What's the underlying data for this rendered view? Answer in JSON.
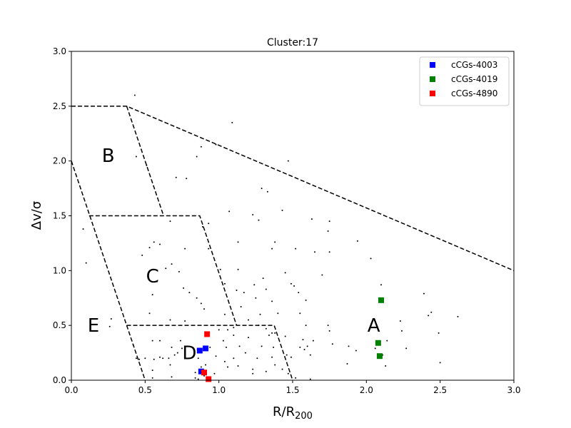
{
  "chart_data": {
    "type": "scatter",
    "title": "Cluster:17",
    "xlabel_main": "R/R",
    "xlabel_sub": "200",
    "ylabel": "Δv/σ",
    "xlim": [
      0,
      3
    ],
    "ylim": [
      0,
      3
    ],
    "x_ticks": [
      "0.0",
      "0.5",
      "1.0",
      "1.5",
      "2.0",
      "2.5",
      "3.0"
    ],
    "y_ticks": [
      "0.0",
      "0.5",
      "1.0",
      "1.5",
      "2.0",
      "2.5",
      "3.0"
    ],
    "grid": false,
    "legend_position": "top-right",
    "regions": [
      {
        "label": "A",
        "x": 2.05,
        "y": 0.5
      },
      {
        "label": "B",
        "x": 0.25,
        "y": 2.05
      },
      {
        "label": "C",
        "x": 0.55,
        "y": 0.95
      },
      {
        "label": "D",
        "x": 0.8,
        "y": 0.25
      },
      {
        "label": "E",
        "x": 0.15,
        "y": 0.5
      }
    ],
    "boundary_lines": [
      [
        [
          0,
          2.5
        ],
        [
          0.375,
          2.5
        ],
        [
          3.0,
          1.0
        ]
      ],
      [
        [
          0.375,
          2.5
        ],
        [
          0.625,
          1.5
        ]
      ],
      [
        [
          0.12,
          1.5
        ],
        [
          0.87,
          1.5
        ],
        [
          1.12,
          0.5
        ]
      ],
      [
        [
          0,
          2.0
        ],
        [
          0.5,
          0.0
        ]
      ],
      [
        [
          0.375,
          0.5
        ],
        [
          1.375,
          0.5
        ],
        [
          1.5,
          0.0
        ]
      ]
    ],
    "series": [
      {
        "name": "cCGs-4003",
        "color": "#0000ff",
        "points": [
          [
            0.87,
            0.27
          ],
          [
            0.91,
            0.29
          ],
          [
            0.88,
            0.08
          ]
        ]
      },
      {
        "name": "cCGs-4019",
        "color": "#008000",
        "points": [
          [
            2.1,
            0.73
          ],
          [
            2.08,
            0.34
          ],
          [
            2.09,
            0.22
          ]
        ]
      },
      {
        "name": "cCGs-4890",
        "color": "#ff0000",
        "points": [
          [
            0.92,
            0.42
          ],
          [
            0.9,
            0.07
          ],
          [
            0.93,
            0.01
          ]
        ]
      }
    ],
    "background_points": [
      [
        0.43,
        2.6
      ],
      [
        1.09,
        2.35
      ],
      [
        0.44,
        2.04
      ],
      [
        0.51,
        1.96
      ],
      [
        0.85,
        2.04
      ],
      [
        0.88,
        2.13
      ],
      [
        0.98,
        2.15
      ],
      [
        1.47,
        2.0
      ],
      [
        0.71,
        1.85
      ],
      [
        0.78,
        1.84
      ],
      [
        1.29,
        1.75
      ],
      [
        1.33,
        1.72
      ],
      [
        1.43,
        1.55
      ],
      [
        1.07,
        1.54
      ],
      [
        1.23,
        1.51
      ],
      [
        1.27,
        1.46
      ],
      [
        1.63,
        1.47
      ],
      [
        1.75,
        1.45
      ],
      [
        0.67,
        1.45
      ],
      [
        0.89,
        1.4
      ],
      [
        0.93,
        1.43
      ],
      [
        0.08,
        1.38
      ],
      [
        1.74,
        1.36
      ],
      [
        1.13,
        1.26
      ],
      [
        1.38,
        1.26
      ],
      [
        0.48,
        1.14
      ],
      [
        0.53,
        1.21
      ],
      [
        0.56,
        1.26
      ],
      [
        0.6,
        1.24
      ],
      [
        0.77,
        1.2
      ],
      [
        0.93,
        1.2
      ],
      [
        1.36,
        1.2
      ],
      [
        1.52,
        1.2
      ],
      [
        1.65,
        1.17
      ],
      [
        1.75,
        1.17
      ],
      [
        1.94,
        1.27
      ],
      [
        2.03,
        1.11
      ],
      [
        0.1,
        1.07
      ],
      [
        0.64,
        1.02
      ],
      [
        0.68,
        1.06
      ],
      [
        0.73,
        0.99
      ],
      [
        1.01,
        1.01
      ],
      [
        1.13,
        1.01
      ],
      [
        1.3,
        0.93
      ],
      [
        1.45,
        0.98
      ],
      [
        1.7,
        0.96
      ],
      [
        0.58,
        0.9
      ],
      [
        0.55,
        0.78
      ],
      [
        0.76,
        0.84
      ],
      [
        0.8,
        0.8
      ],
      [
        1.04,
        0.88
      ],
      [
        1.12,
        0.82
      ],
      [
        1.24,
        0.87
      ],
      [
        1.32,
        0.83
      ],
      [
        1.49,
        0.88
      ],
      [
        1.51,
        0.86
      ],
      [
        2.1,
        0.87
      ],
      [
        0.85,
        0.75
      ],
      [
        0.88,
        0.7
      ],
      [
        1.17,
        0.8
      ],
      [
        1.25,
        0.75
      ],
      [
        1.36,
        0.72
      ],
      [
        1.54,
        0.8
      ],
      [
        1.59,
        0.73
      ],
      [
        2.39,
        0.79
      ],
      [
        0.9,
        0.65
      ],
      [
        1.04,
        0.6
      ],
      [
        1.15,
        0.67
      ],
      [
        1.2,
        0.55
      ],
      [
        1.28,
        0.6
      ],
      [
        1.4,
        0.61
      ],
      [
        1.55,
        0.61
      ],
      [
        2.44,
        0.62
      ],
      [
        2.42,
        0.59
      ],
      [
        2.62,
        0.58
      ],
      [
        0.53,
        0.61
      ],
      [
        0.27,
        0.56
      ],
      [
        0.26,
        0.49
      ],
      [
        0.67,
        0.55
      ],
      [
        0.77,
        0.54
      ],
      [
        1.0,
        0.46
      ],
      [
        1.06,
        0.46
      ],
      [
        1.1,
        0.48
      ],
      [
        1.27,
        0.5
      ],
      [
        1.32,
        0.47
      ],
      [
        1.38,
        0.43
      ],
      [
        1.59,
        0.5
      ],
      [
        1.74,
        0.5
      ],
      [
        1.75,
        0.45
      ],
      [
        2.23,
        0.54
      ],
      [
        2.24,
        0.45
      ],
      [
        2.14,
        0.36
      ],
      [
        2.49,
        0.43
      ],
      [
        0.42,
        0.32
      ],
      [
        0.55,
        0.36
      ],
      [
        0.6,
        0.36
      ],
      [
        0.74,
        0.36
      ],
      [
        1.03,
        0.36
      ],
      [
        1.1,
        0.41
      ],
      [
        1.2,
        0.39
      ],
      [
        1.34,
        0.41
      ],
      [
        1.36,
        0.43
      ],
      [
        1.45,
        0.4
      ],
      [
        1.57,
        0.37
      ],
      [
        1.64,
        0.36
      ],
      [
        1.77,
        0.33
      ],
      [
        0.68,
        0.3
      ],
      [
        0.75,
        0.29
      ],
      [
        0.94,
        0.3
      ],
      [
        1.05,
        0.3
      ],
      [
        1.14,
        0.31
      ],
      [
        1.29,
        0.31
      ],
      [
        1.37,
        0.3
      ],
      [
        1.55,
        0.3
      ],
      [
        1.58,
        0.28
      ],
      [
        1.6,
        0.31
      ],
      [
        1.88,
        0.31
      ],
      [
        1.93,
        0.27
      ],
      [
        2.06,
        0.29
      ],
      [
        2.11,
        0.23
      ],
      [
        2.27,
        0.29
      ],
      [
        0.44,
        0.2
      ],
      [
        0.46,
        0.19
      ],
      [
        0.5,
        0.2
      ],
      [
        0.56,
        0.19
      ],
      [
        0.6,
        0.21
      ],
      [
        0.62,
        0.2
      ],
      [
        0.66,
        0.2
      ],
      [
        0.7,
        0.23
      ],
      [
        0.72,
        0.25
      ],
      [
        0.86,
        0.2
      ],
      [
        0.98,
        0.22
      ],
      [
        1.04,
        0.17
      ],
      [
        1.1,
        0.2
      ],
      [
        1.18,
        0.25
      ],
      [
        1.26,
        0.2
      ],
      [
        1.36,
        0.21
      ],
      [
        1.46,
        0.23
      ],
      [
        1.49,
        0.21
      ],
      [
        1.62,
        0.23
      ],
      [
        1.87,
        0.15
      ],
      [
        2.13,
        0.13
      ],
      [
        2.5,
        0.16
      ],
      [
        0.67,
        0.14
      ],
      [
        0.88,
        0.12
      ],
      [
        0.91,
        0.14
      ],
      [
        1.06,
        0.12
      ],
      [
        1.13,
        0.13
      ],
      [
        1.23,
        0.1
      ],
      [
        1.32,
        0.08
      ],
      [
        1.38,
        0.14
      ],
      [
        1.43,
        0.1
      ],
      [
        1.47,
        0.06
      ],
      [
        0.84,
        0.07
      ],
      [
        0.97,
        0.06
      ],
      [
        1.23,
        0.06
      ],
      [
        0.55,
        0.02
      ],
      [
        0.68,
        0.03
      ],
      [
        0.84,
        0.02
      ],
      [
        0.86,
        0.01
      ],
      [
        0.9,
        0.04
      ],
      [
        1.62,
        0.01
      ],
      [
        1.52,
        0.02
      ],
      [
        0.55,
        0.09
      ]
    ]
  }
}
